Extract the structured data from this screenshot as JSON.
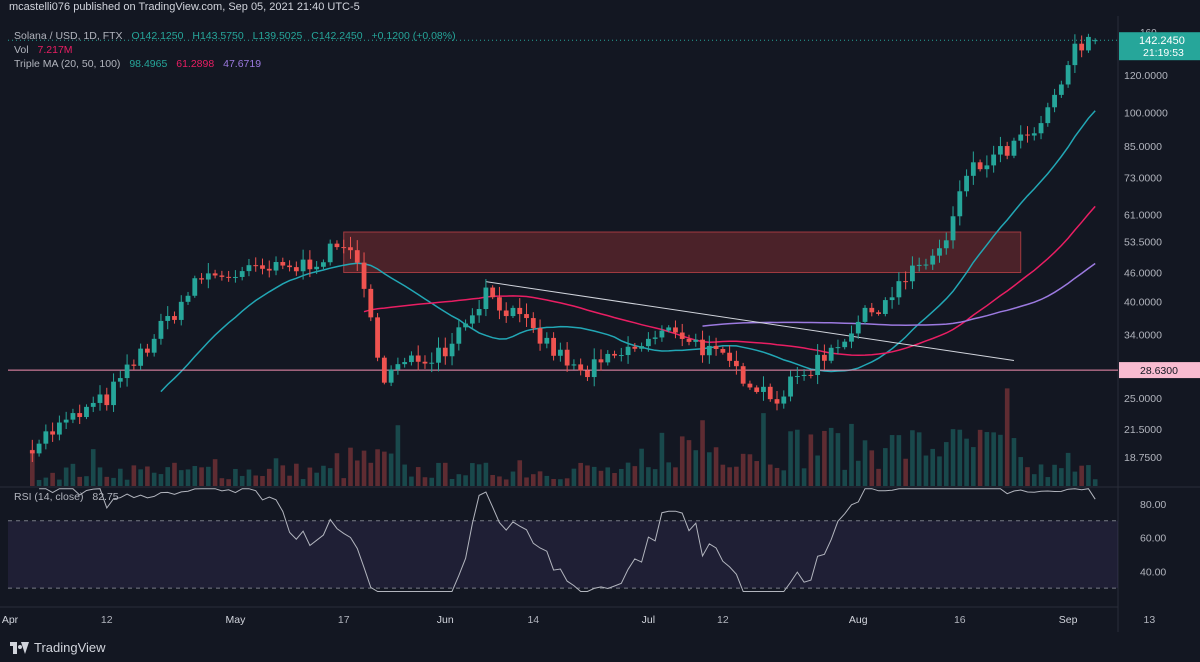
{
  "header": {
    "published": "mcastelli076 published on TradingView.com, Sep 05, 2021 21:40 UTC-5",
    "symbol_line": "Solana / USD, 1D, FTX",
    "ohlc": {
      "o": "O142.1250",
      "h": "H143.5750",
      "l": "L139.5025",
      "c": "C142.2450",
      "chg": "+0.1200 (+0.08%)"
    },
    "vol_label": "Vol",
    "vol_value": "7.217M",
    "ma_label": "Triple MA (20, 50, 100)",
    "ma_values": [
      "98.4965",
      "61.2898",
      "47.6719"
    ],
    "rsi_label": "RSI (14, close)",
    "rsi_value": "82.75"
  },
  "price_scale": {
    "currency": "USD",
    "top_partial": "160",
    "current_price": "142.2450",
    "countdown": "21:19:53",
    "support_label": "28.6300"
  },
  "colors": {
    "up": "#26a69a",
    "down": "#ef5350",
    "ma20": "#22a7b5",
    "ma50": "#e91e63",
    "ma100": "#9c7ae0",
    "rsi": "#b2b5be",
    "zone": "#7a2b30",
    "bg": "#131722"
  },
  "footer": {
    "brand": "TradingView"
  },
  "chart_data": {
    "type": "candlestick",
    "title": "Solana / USD, 1D, FTX",
    "y_scale": "log",
    "y_ticks": [
      "120.0000",
      "100.0000",
      "85.0000",
      "73.0000",
      "61.0000",
      "53.5000",
      "46.0000",
      "40.0000",
      "34.0000",
      "28.6300",
      "25.0000",
      "21.5000",
      "18.7500"
    ],
    "x_ticks": [
      "Apr",
      "12",
      "May",
      "17",
      "Jun",
      "14",
      "Jul",
      "12",
      "Aug",
      "16",
      "Sep",
      "13"
    ],
    "key_closes": [
      {
        "date": "2021-04-01",
        "close": 20
      },
      {
        "date": "2021-04-12",
        "close": 25
      },
      {
        "date": "2021-04-26",
        "close": 45
      },
      {
        "date": "2021-05-10",
        "close": 47
      },
      {
        "date": "2021-05-18",
        "close": 53
      },
      {
        "date": "2021-05-23",
        "close": 28
      },
      {
        "date": "2021-06-01",
        "close": 32
      },
      {
        "date": "2021-06-07",
        "close": 42
      },
      {
        "date": "2021-06-21",
        "close": 28
      },
      {
        "date": "2021-07-05",
        "close": 35
      },
      {
        "date": "2021-07-20",
        "close": 25
      },
      {
        "date": "2021-08-01",
        "close": 36
      },
      {
        "date": "2021-08-14",
        "close": 53
      },
      {
        "date": "2021-08-17",
        "close": 74
      },
      {
        "date": "2021-08-28",
        "close": 92
      },
      {
        "date": "2021-09-02",
        "close": 135
      },
      {
        "date": "2021-09-05",
        "close": 142.245
      }
    ],
    "resistance_zone": [
      46,
      56
    ],
    "support_level": 28.63,
    "trendline": [
      {
        "date": "2021-06-07",
        "price": 44
      },
      {
        "date": "2021-08-24",
        "price": 30
      }
    ],
    "rsi": {
      "levels": [
        30,
        70
      ],
      "y_ticks": [
        "80.00",
        "60.00",
        "40.00"
      ],
      "last": 82.75
    }
  }
}
